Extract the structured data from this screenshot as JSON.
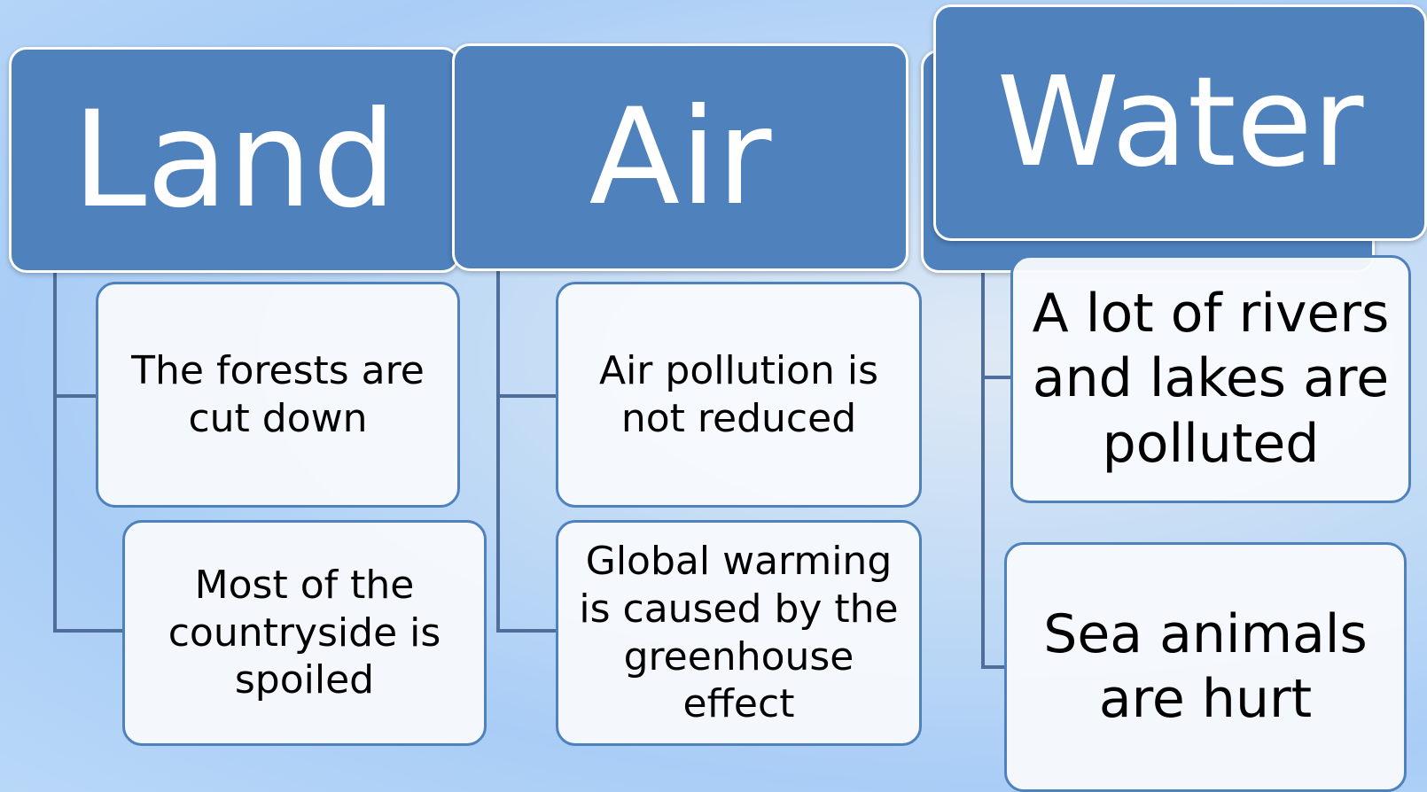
{
  "columns": [
    {
      "title": "Land",
      "items": [
        "The forests are cut down",
        "Most of the countryside is spoiled"
      ]
    },
    {
      "title": "Air",
      "items": [
        "Air pollution is not reduced",
        "Global warming is caused by the greenhouse effect"
      ]
    },
    {
      "title": "Water",
      "items": [
        "A lot of rivers and lakes are polluted",
        "Sea animals are hurt"
      ]
    }
  ]
}
